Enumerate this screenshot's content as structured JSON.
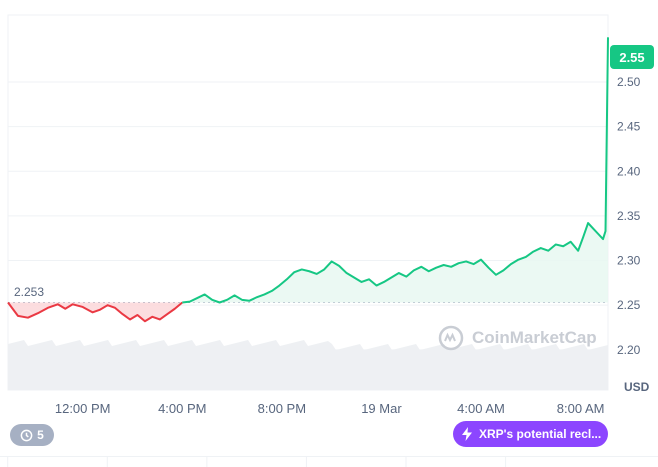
{
  "chart_data": {
    "type": "area",
    "currency": "USD",
    "baseline_value": 2.253,
    "baseline_label": "2.253",
    "current_value": 2.55,
    "current_label": "2.55",
    "y_axis": {
      "ticks": [
        2.2,
        2.25,
        2.3,
        2.35,
        2.4,
        2.45,
        2.5,
        2.55
      ],
      "tick_labels": [
        "2.20",
        "2.25",
        "2.30",
        "2.35",
        "2.40",
        "2.45",
        "2.50",
        "2.55"
      ],
      "unit_label": "USD",
      "ylim": [
        2.155,
        2.575
      ]
    },
    "x_axis": {
      "ticks": [
        12,
        16,
        20,
        24,
        28,
        32
      ],
      "tick_labels": [
        "12:00 PM",
        "4:00 PM",
        "8:00 PM",
        "19 Mar",
        "4:00 AM",
        "8:00 AM"
      ],
      "xlim": [
        9.0,
        33.1
      ]
    },
    "series": [
      {
        "points": [
          [
            9.0,
            2.253
          ],
          [
            9.4,
            2.238
          ],
          [
            9.8,
            2.236
          ],
          [
            10.2,
            2.241
          ],
          [
            10.6,
            2.247
          ],
          [
            11.0,
            2.251
          ],
          [
            11.3,
            2.246
          ],
          [
            11.6,
            2.251
          ],
          [
            12.0,
            2.248
          ],
          [
            12.4,
            2.242
          ],
          [
            12.7,
            2.245
          ],
          [
            13.0,
            2.25
          ],
          [
            13.3,
            2.247
          ],
          [
            13.6,
            2.24
          ],
          [
            13.9,
            2.234
          ],
          [
            14.2,
            2.239
          ],
          [
            14.5,
            2.232
          ],
          [
            14.8,
            2.237
          ],
          [
            15.1,
            2.234
          ],
          [
            15.4,
            2.24
          ],
          [
            15.7,
            2.246
          ],
          [
            16.0,
            2.253
          ],
          [
            16.3,
            2.254
          ],
          [
            16.6,
            2.258
          ],
          [
            16.9,
            2.262
          ],
          [
            17.2,
            2.256
          ],
          [
            17.5,
            2.253
          ],
          [
            17.8,
            2.256
          ],
          [
            18.1,
            2.261
          ],
          [
            18.4,
            2.256
          ],
          [
            18.7,
            2.255
          ],
          [
            19.0,
            2.259
          ],
          [
            19.3,
            2.262
          ],
          [
            19.6,
            2.266
          ],
          [
            19.9,
            2.272
          ],
          [
            20.2,
            2.279
          ],
          [
            20.5,
            2.287
          ],
          [
            20.8,
            2.29
          ],
          [
            21.1,
            2.288
          ],
          [
            21.4,
            2.285
          ],
          [
            21.7,
            2.29
          ],
          [
            22.0,
            2.299
          ],
          [
            22.3,
            2.294
          ],
          [
            22.6,
            2.286
          ],
          [
            22.9,
            2.281
          ],
          [
            23.2,
            2.276
          ],
          [
            23.5,
            2.279
          ],
          [
            23.8,
            2.272
          ],
          [
            24.1,
            2.276
          ],
          [
            24.4,
            2.281
          ],
          [
            24.7,
            2.286
          ],
          [
            25.0,
            2.282
          ],
          [
            25.3,
            2.289
          ],
          [
            25.6,
            2.293
          ],
          [
            25.9,
            2.288
          ],
          [
            26.2,
            2.292
          ],
          [
            26.5,
            2.295
          ],
          [
            26.8,
            2.293
          ],
          [
            27.1,
            2.297
          ],
          [
            27.4,
            2.299
          ],
          [
            27.7,
            2.296
          ],
          [
            28.0,
            2.301
          ],
          [
            28.3,
            2.292
          ],
          [
            28.6,
            2.284
          ],
          [
            28.9,
            2.289
          ],
          [
            29.2,
            2.296
          ],
          [
            29.5,
            2.301
          ],
          [
            29.8,
            2.304
          ],
          [
            30.1,
            2.31
          ],
          [
            30.4,
            2.314
          ],
          [
            30.7,
            2.311
          ],
          [
            31.0,
            2.318
          ],
          [
            31.3,
            2.316
          ],
          [
            31.6,
            2.321
          ],
          [
            31.9,
            2.311
          ],
          [
            32.1,
            2.326
          ],
          [
            32.3,
            2.342
          ],
          [
            32.5,
            2.336
          ],
          [
            32.7,
            2.33
          ],
          [
            32.9,
            2.324
          ],
          [
            33.0,
            2.333
          ],
          [
            33.1,
            2.55
          ]
        ]
      }
    ],
    "volume_shown": true,
    "colors": {
      "up": "#16c784",
      "down": "#ea3943",
      "up_fill": "#e7f8f1",
      "down_fill": "#fbd7d9",
      "grid": "#eff2f5",
      "axis_text": "#58667e",
      "volume": "#eef0f3"
    }
  },
  "watermark": {
    "text": "CoinMarketCap",
    "icon": "coinmarketcap-logo-icon"
  },
  "events": {
    "count": "5",
    "icon": "history-clock-icon"
  },
  "news": {
    "label": "XRP's potential recl...",
    "icon": "lightning-icon",
    "color": "#8c46ff"
  }
}
